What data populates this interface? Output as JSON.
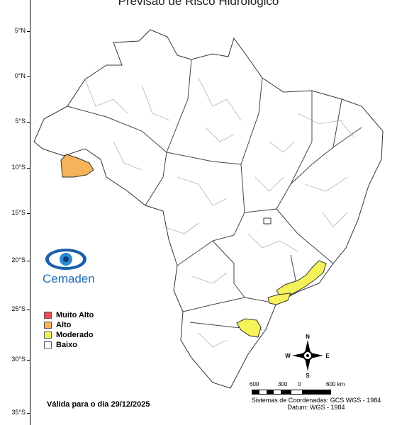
{
  "title": "Previsão de Risco Hidrológico",
  "latitude_labels": [
    "5°N",
    "0°N",
    "5°S",
    "10°S",
    "15°S",
    "20°S",
    "25°S",
    "30°S",
    "35°S"
  ],
  "legend": {
    "items": [
      {
        "label": "Muito Alto",
        "color": "#ee4c5a"
      },
      {
        "label": "Alto",
        "color": "#f7b35a"
      },
      {
        "label": "Moderado",
        "color": "#f6f35a"
      },
      {
        "label": "Baixo",
        "color": "#ffffff"
      }
    ]
  },
  "validity": "Válida para o dia 29/12/2025",
  "logo": {
    "text": "Cemaden",
    "icon": "eye-logo-icon"
  },
  "scale": {
    "labels": [
      "600",
      "300",
      "0",
      "600 km"
    ]
  },
  "coordinate_system": {
    "line1": "Sistemas de Coordenadas: GCS WGS - 1984",
    "line2": "Datum: WGS - 1984"
  },
  "compass": {
    "n": "N",
    "s": "S",
    "e": "E",
    "w": "W"
  },
  "colors": {
    "high": "#f7b35a",
    "moderate": "#f6f35a",
    "border": "#333333"
  }
}
